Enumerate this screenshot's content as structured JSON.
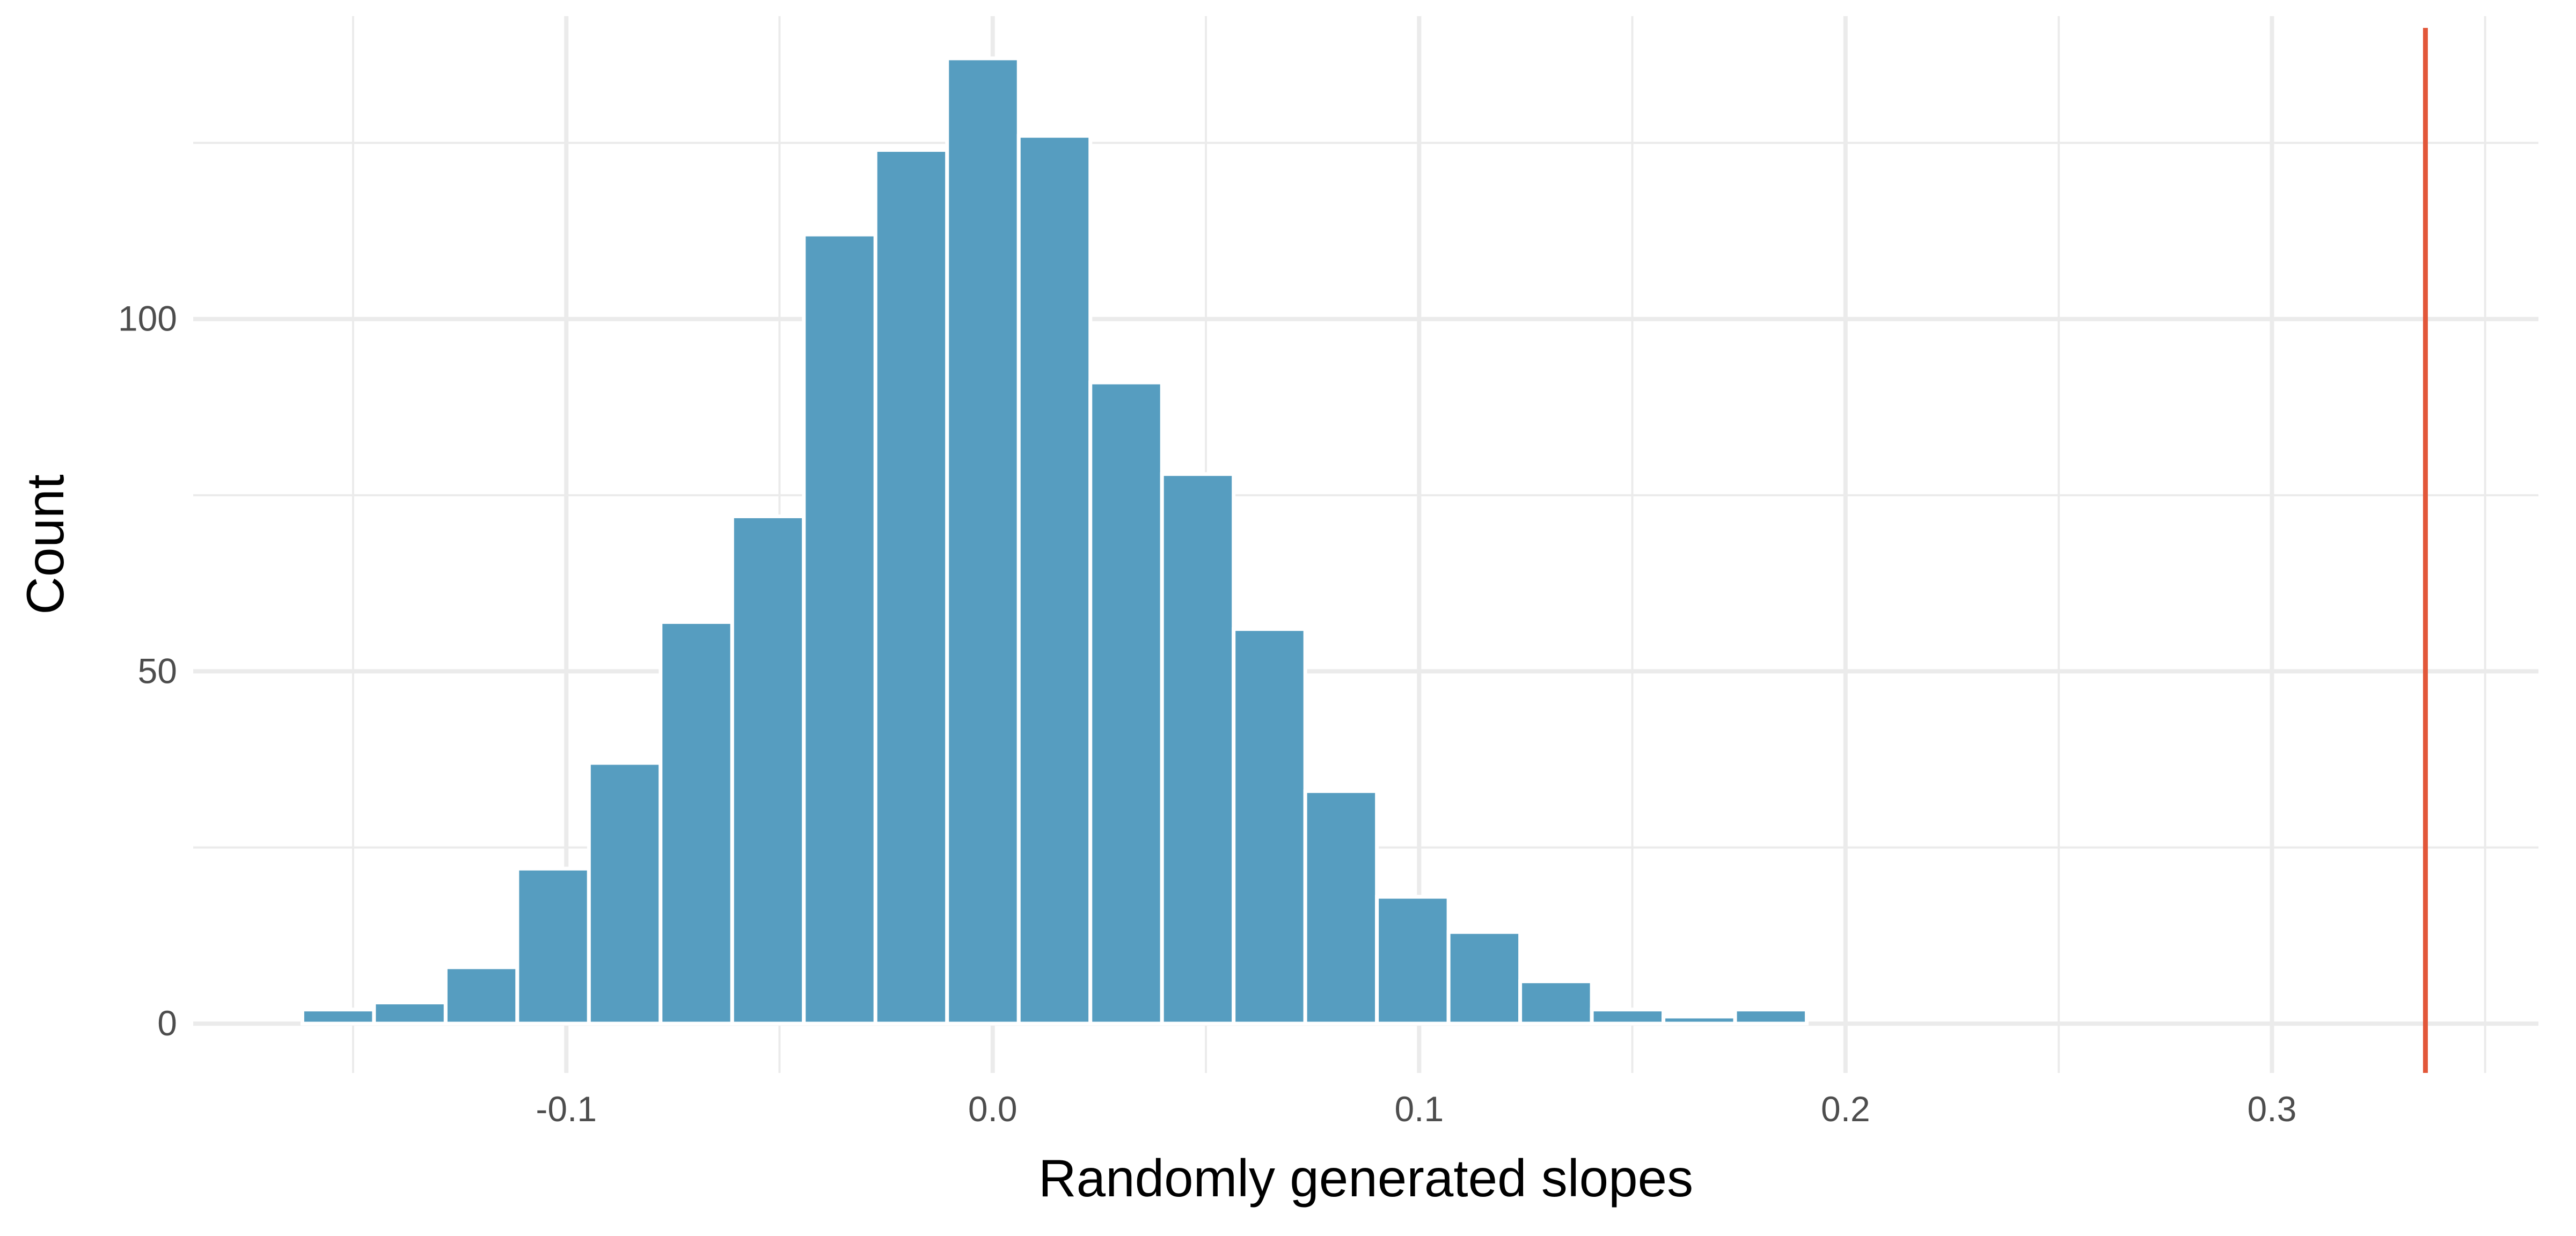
{
  "chart_data": {
    "type": "bar",
    "title": "",
    "xlabel": "Randomly generated slopes",
    "ylabel": "Count",
    "xlim": [
      -0.1875,
      0.3625
    ],
    "ylim": [
      -7,
      143
    ],
    "x_major_ticks": [
      -0.1,
      0.0,
      0.1,
      0.2,
      0.3
    ],
    "x_tick_labels": [
      "-0.1",
      "0.0",
      "0.1",
      "0.2",
      "0.3"
    ],
    "x_minor_ticks": [
      -0.15,
      -0.05,
      0.05,
      0.15,
      0.25,
      0.35
    ],
    "y_major_ticks": [
      0,
      50,
      100
    ],
    "y_tick_labels": [
      "0",
      "50",
      "100"
    ],
    "y_minor_ticks": [
      25,
      75,
      125
    ],
    "grid": true,
    "bin_width": 0.0168,
    "bins": [
      {
        "x": -0.1535,
        "count": 2
      },
      {
        "x": -0.1367,
        "count": 3
      },
      {
        "x": -0.1199,
        "count": 8
      },
      {
        "x": -0.1031,
        "count": 22
      },
      {
        "x": -0.0863,
        "count": 37
      },
      {
        "x": -0.0695,
        "count": 57
      },
      {
        "x": -0.0527,
        "count": 72
      },
      {
        "x": -0.0359,
        "count": 112
      },
      {
        "x": -0.0191,
        "count": 124
      },
      {
        "x": -0.0023,
        "count": 137
      },
      {
        "x": 0.0145,
        "count": 126
      },
      {
        "x": 0.0313,
        "count": 91
      },
      {
        "x": 0.0481,
        "count": 78
      },
      {
        "x": 0.0649,
        "count": 56
      },
      {
        "x": 0.0817,
        "count": 33
      },
      {
        "x": 0.0985,
        "count": 18
      },
      {
        "x": 0.1153,
        "count": 13
      },
      {
        "x": 0.1321,
        "count": 6
      },
      {
        "x": 0.1489,
        "count": 2
      },
      {
        "x": 0.1657,
        "count": 1
      },
      {
        "x": 0.1825,
        "count": 2
      }
    ],
    "reference_line": {
      "x": 0.336
    },
    "colors": {
      "bar": "#569dc0",
      "reference_line": "#e2573a",
      "grid": "#ebebeb"
    }
  }
}
